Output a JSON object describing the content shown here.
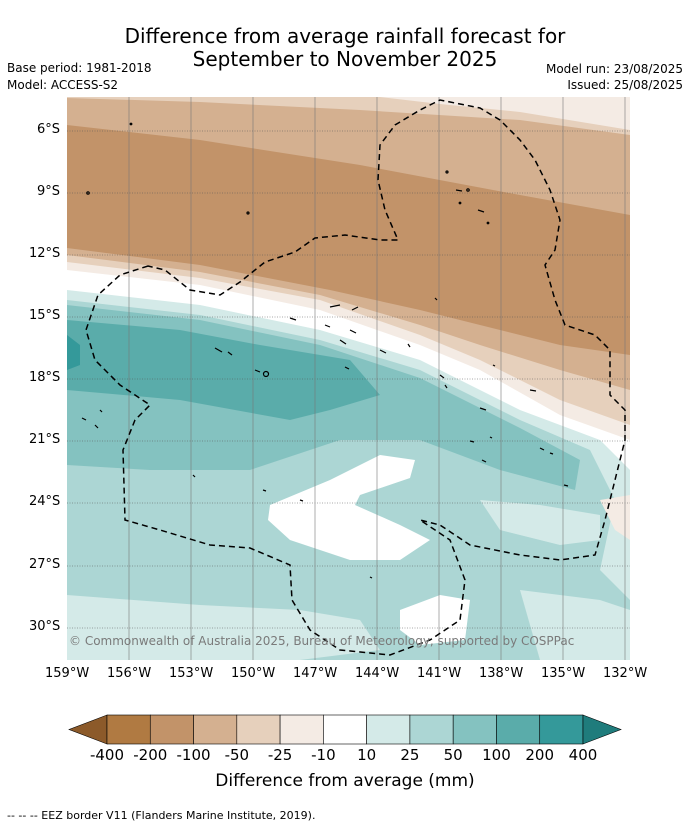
{
  "title_line1": "Difference from average rainfall forecast for",
  "title_line2": "September to November 2025",
  "base_period": "Base period: 1981-2018",
  "model": "Model: ACCESS-S2",
  "model_run": "Model run: 23/08/2025",
  "issued": "Issued: 25/08/2025",
  "copyright": "© Commonwealth of Australia 2025, Bureau of Meteorology, supported by COSPPac",
  "lat_labels": [
    "6°S",
    "9°S",
    "12°S",
    "15°S",
    "18°S",
    "21°S",
    "24°S",
    "27°S",
    "30°S"
  ],
  "lon_labels": [
    "159°W",
    "156°W",
    "153°W",
    "150°W",
    "147°W",
    "144°W",
    "141°W",
    "138°W",
    "135°W",
    "132°W"
  ],
  "colorbar": {
    "title": "Difference from average (mm)",
    "tick_labels": [
      "-400",
      "-200",
      "-100",
      "-50",
      "-25",
      "-10",
      "10",
      "25",
      "50",
      "100",
      "200",
      "400"
    ],
    "colors": [
      "#8c5a2a",
      "#b07a42",
      "#c29369",
      "#d4b090",
      "#e6d0bc",
      "#f4ebe4",
      "#ffffff",
      "#d4eae8",
      "#acd6d4",
      "#84c2c0",
      "#5aacaa",
      "#34999a",
      "#1f7c7c"
    ]
  },
  "footer": "--  --  -- EEZ border V11 (Flanders Marine Institute, 2019)."
}
